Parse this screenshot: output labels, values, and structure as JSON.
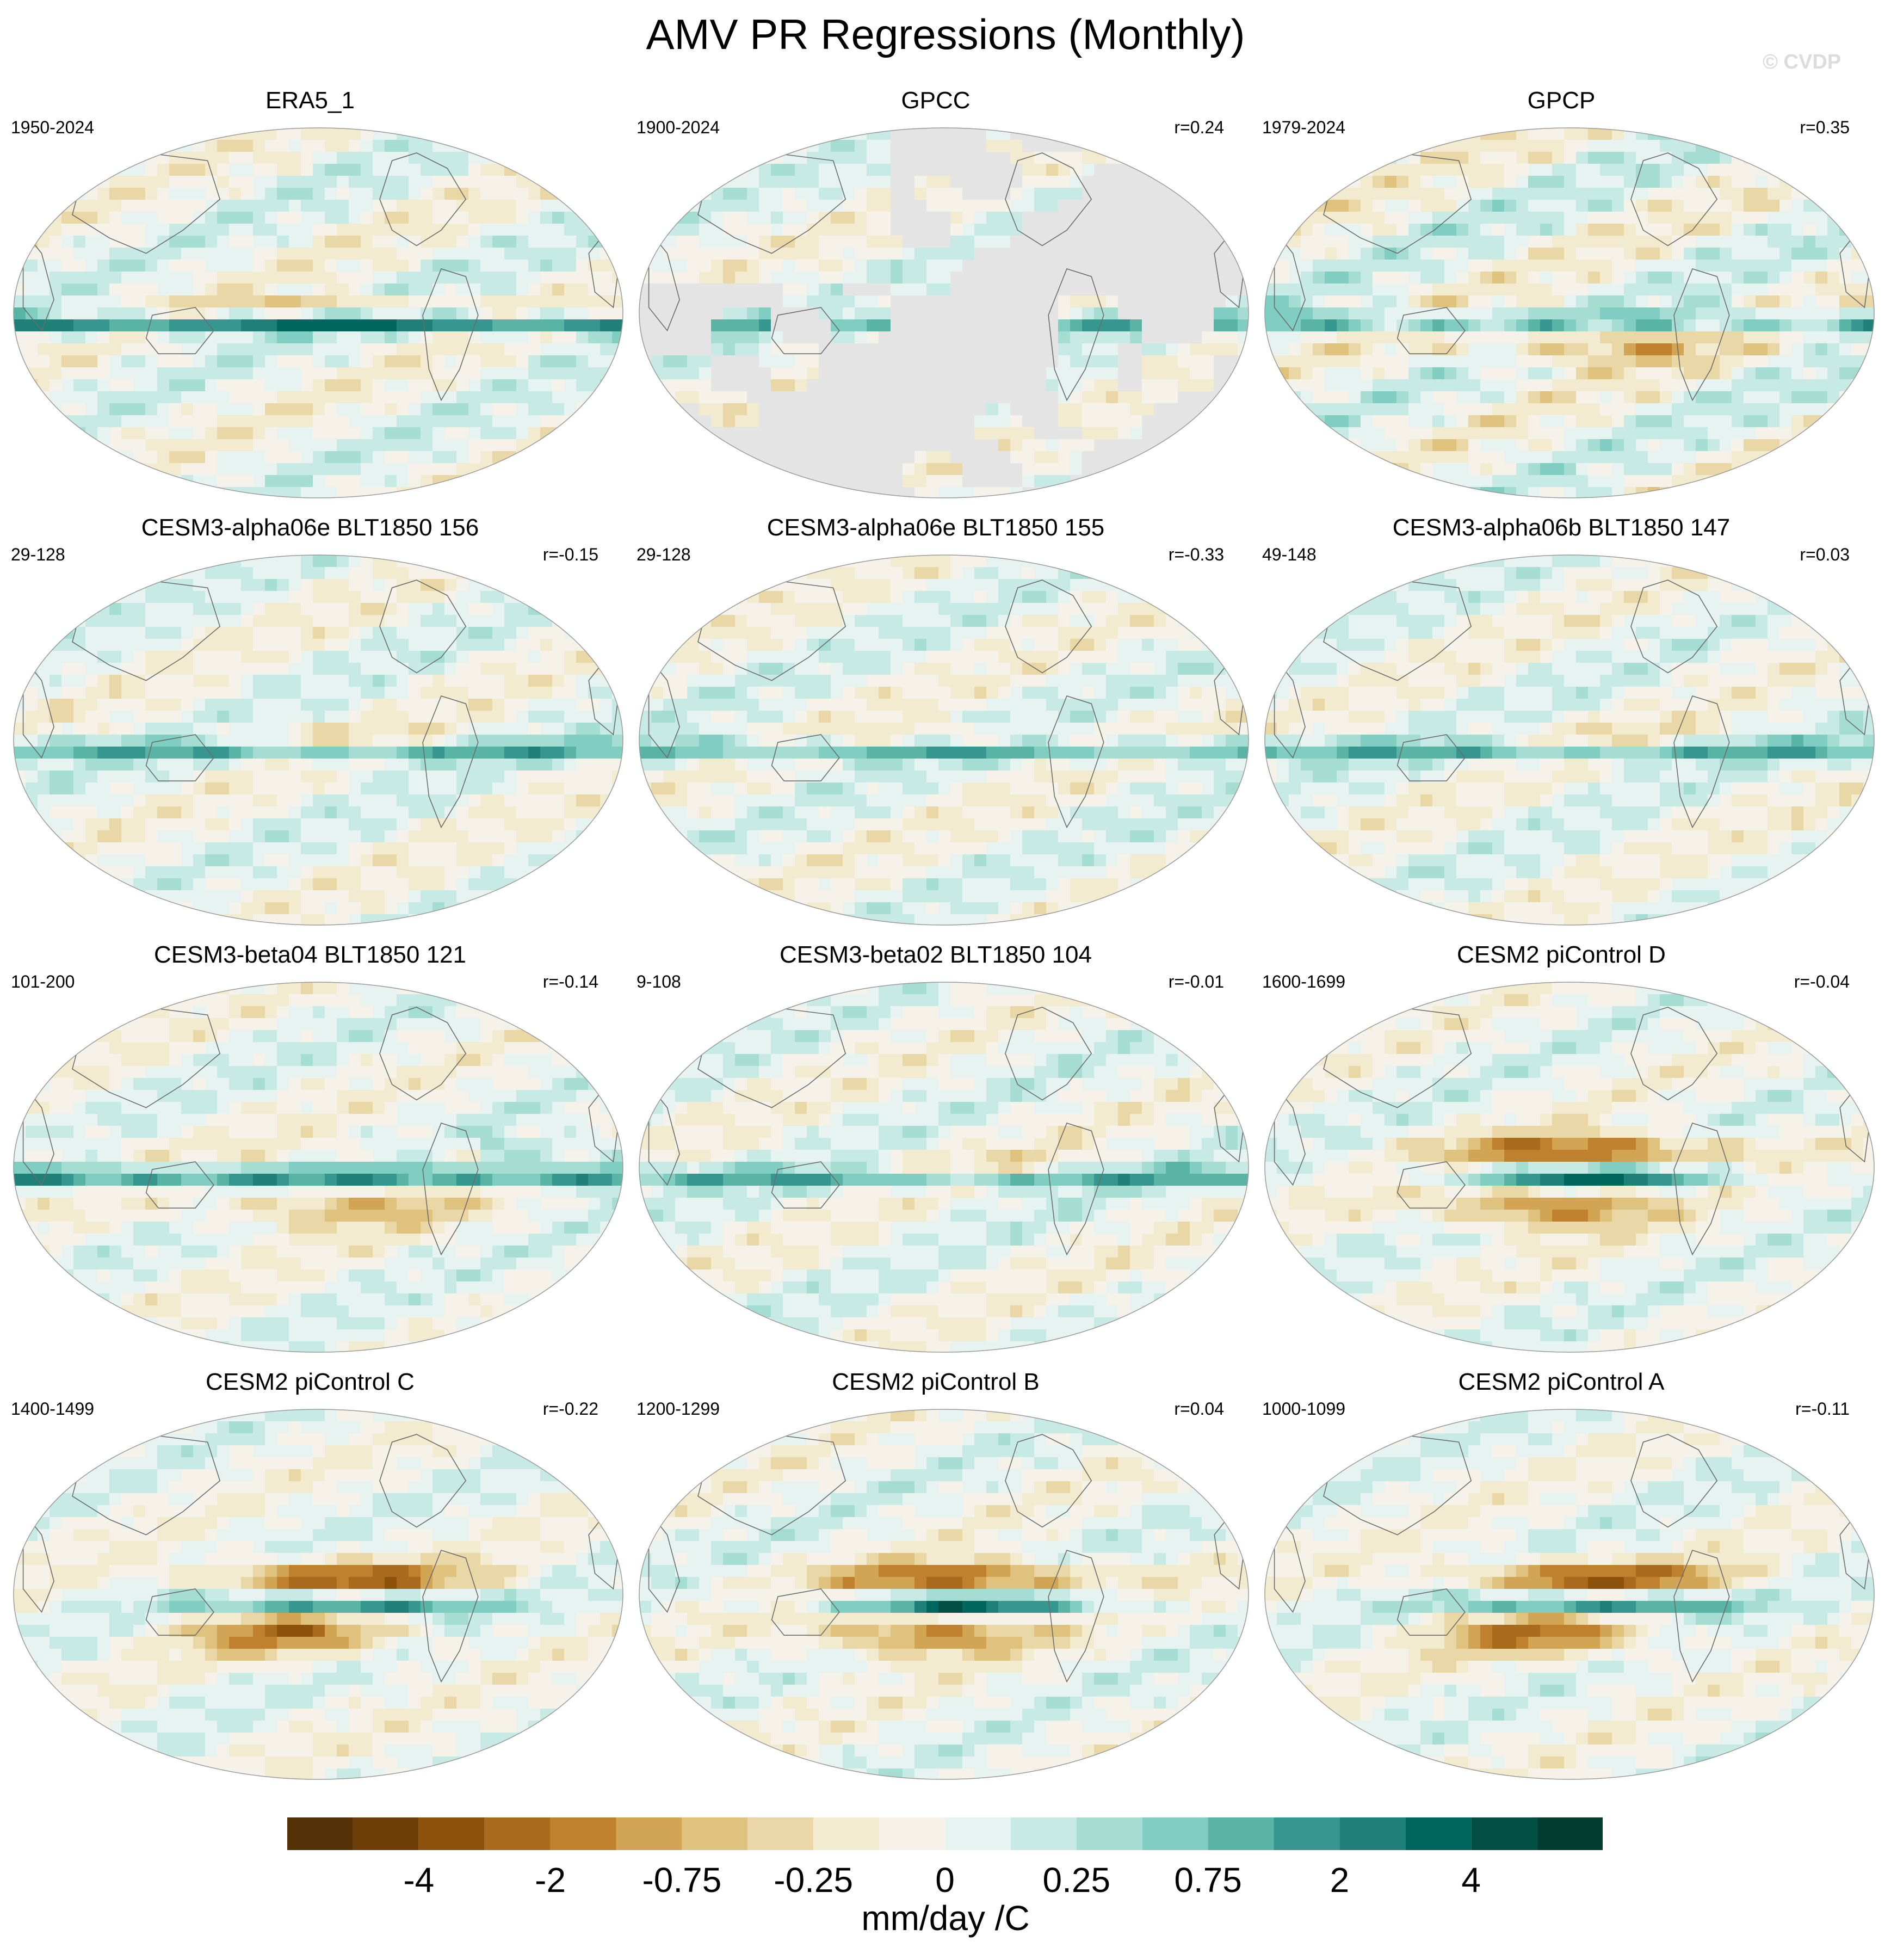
{
  "title": "AMV PR Regressions (Monthly)",
  "watermark": "© CVDP",
  "panels": [
    {
      "title": "ERA5_1",
      "period": "1950-2024",
      "r": "",
      "pattern": "obs_era5"
    },
    {
      "title": "GPCC",
      "period": "1900-2024",
      "r": "r=0.24",
      "pattern": "land_only"
    },
    {
      "title": "GPCP",
      "period": "1979-2024",
      "r": "r=0.35",
      "pattern": "obs_gpcp"
    },
    {
      "title": "CESM3-alpha06e BLT1850 156",
      "period": "29-128",
      "r": "r=-0.15",
      "pattern": "model_weak"
    },
    {
      "title": "CESM3-alpha06e BLT1850 155",
      "period": "29-128",
      "r": "r=-0.33",
      "pattern": "model_weak"
    },
    {
      "title": "CESM3-alpha06b BLT1850 147",
      "period": "49-148",
      "r": "r=0.03",
      "pattern": "model_weak"
    },
    {
      "title": "CESM3-beta04 BLT1850 121",
      "period": "101-200",
      "r": "r=-0.14",
      "pattern": "model_medium"
    },
    {
      "title": "CESM3-beta02 BLT1850 104",
      "period": "9-108",
      "r": "r=-0.01",
      "pattern": "model_weak"
    },
    {
      "title": "CESM2 piControl D",
      "period": "1600-1699",
      "r": "r=-0.04",
      "pattern": "model_strong"
    },
    {
      "title": "CESM2 piControl C",
      "period": "1400-1499",
      "r": "r=-0.22",
      "pattern": "model_strong"
    },
    {
      "title": "CESM2 piControl B",
      "period": "1200-1299",
      "r": "r=0.04",
      "pattern": "model_strong"
    },
    {
      "title": "CESM2 piControl A",
      "period": "1000-1099",
      "r": "r=-0.11",
      "pattern": "model_strong"
    }
  ],
  "colorbar": {
    "colors": [
      "#543005",
      "#6f3f0a",
      "#8c510a",
      "#a86a1c",
      "#bf812d",
      "#d1a554",
      "#dfc27d",
      "#ead7a6",
      "#f3ebcf",
      "#f5f2ea",
      "#e6f3f0",
      "#c7eae5",
      "#a5ddd3",
      "#80cdc1",
      "#5ab4a5",
      "#35978f",
      "#1e8078",
      "#01665e",
      "#014f45",
      "#003c30"
    ],
    "labels": [
      "-4",
      "-2",
      "-0.75",
      "-0.25",
      "0",
      "0.25",
      "0.75",
      "2",
      "4"
    ],
    "label_boundaries": [
      2,
      4,
      6,
      8,
      10,
      12,
      14,
      16,
      18
    ],
    "units": "mm/day /C",
    "missing_color": "#e4e4e4"
  }
}
